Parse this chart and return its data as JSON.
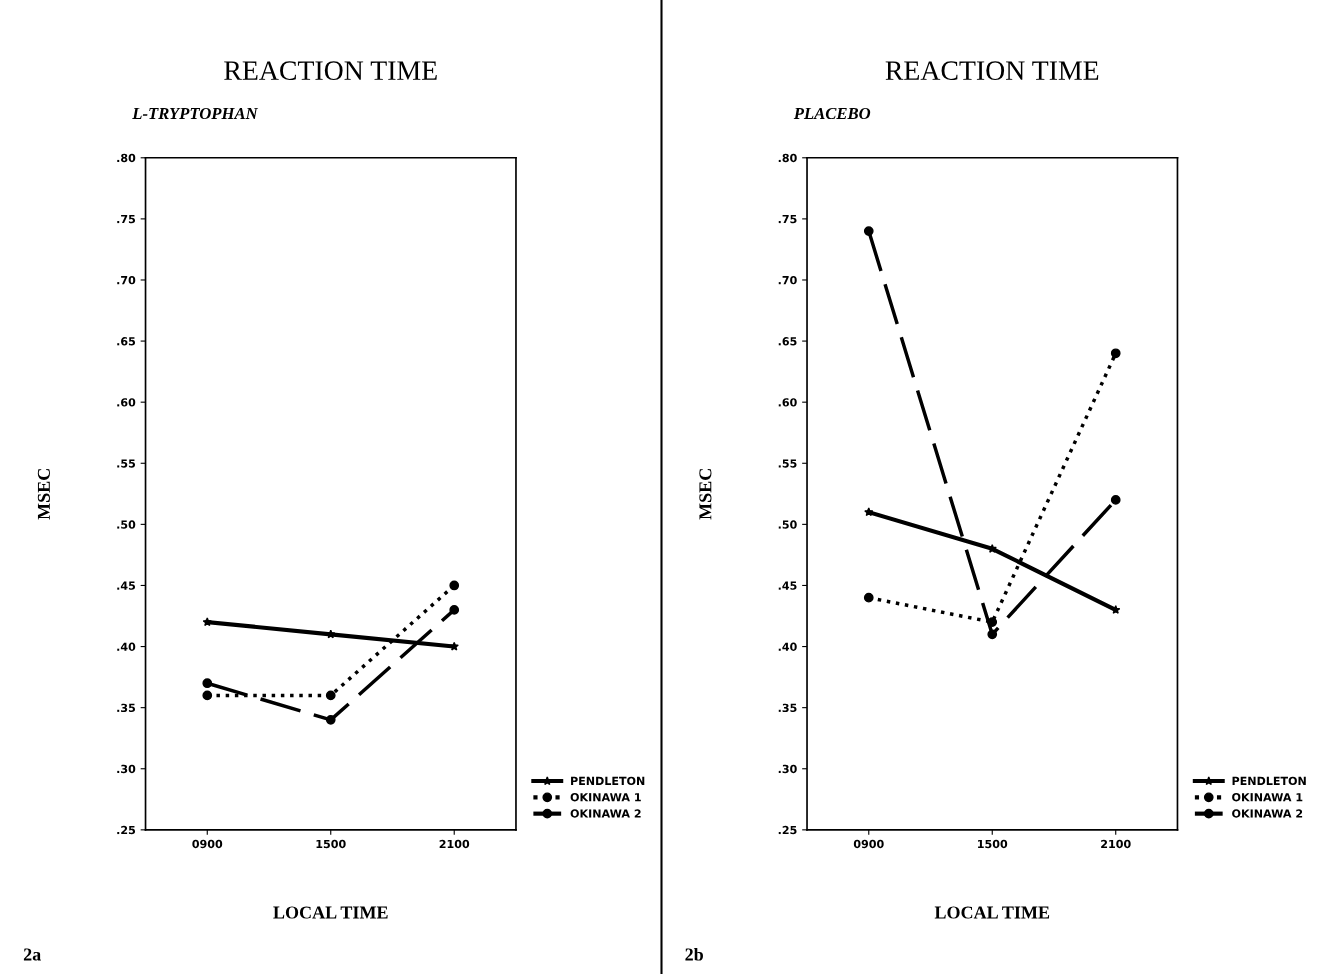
{
  "chart_data": [
    {
      "type": "line",
      "title": "REACTION TIME",
      "subtitle": "L-TRYPTOPHAN",
      "xlabel": "LOCAL TIME",
      "ylabel": "MSEC",
      "categories": [
        "0900",
        "1500",
        "2100"
      ],
      "series": [
        {
          "name": "PENDLETON",
          "color": "#000000",
          "line_style": "solid",
          "marker": "star",
          "values": [
            0.42,
            0.41,
            0.4
          ]
        },
        {
          "name": "OKINAWA 1",
          "color": "#000000",
          "line_style": "dotted",
          "marker": "circle",
          "values": [
            0.36,
            0.36,
            0.45
          ]
        },
        {
          "name": "OKINAWA 2",
          "color": "#000000",
          "line_style": "dashed",
          "marker": "circle",
          "values": [
            0.37,
            0.34,
            0.43
          ]
        }
      ],
      "ylim": [
        0.25,
        0.8
      ],
      "yticks": [
        {
          "value": 0.25,
          "label": ".25"
        },
        {
          "value": 0.3,
          "label": ".30"
        },
        {
          "value": 0.35,
          "label": ".35"
        },
        {
          "value": 0.4,
          "label": ".40"
        },
        {
          "value": 0.45,
          "label": ".45"
        },
        {
          "value": 0.5,
          "label": ".50"
        },
        {
          "value": 0.55,
          "label": ".55"
        },
        {
          "value": 0.6,
          "label": ".60"
        },
        {
          "value": 0.65,
          "label": ".65"
        },
        {
          "value": 0.7,
          "label": ".70"
        },
        {
          "value": 0.75,
          "label": ".75"
        },
        {
          "value": 0.8,
          "label": ".80"
        }
      ],
      "grid": false,
      "legend": "bottom right",
      "annotations": [
        "2a"
      ]
    },
    {
      "type": "line",
      "title": "REACTION TIME",
      "subtitle": "PLACEBO",
      "xlabel": "LOCAL TIME",
      "ylabel": "MSEC",
      "categories": [
        "0900",
        "1500",
        "2100"
      ],
      "series": [
        {
          "name": "PENDLETON",
          "color": "#000000",
          "line_style": "solid",
          "marker": "star",
          "values": [
            0.51,
            0.48,
            0.43
          ]
        },
        {
          "name": "OKINAWA 1",
          "color": "#000000",
          "line_style": "dotted",
          "marker": "circle",
          "values": [
            0.44,
            0.42,
            0.64
          ]
        },
        {
          "name": "OKINAWA 2",
          "color": "#000000",
          "line_style": "dashed",
          "marker": "circle",
          "values": [
            0.74,
            0.41,
            0.52
          ]
        }
      ],
      "ylim": [
        0.25,
        0.8
      ],
      "yticks": [
        {
          "value": 0.25,
          "label": ".25"
        },
        {
          "value": 0.3,
          "label": ".30"
        },
        {
          "value": 0.35,
          "label": ".35"
        },
        {
          "value": 0.4,
          "label": ".40"
        },
        {
          "value": 0.45,
          "label": ".45"
        },
        {
          "value": 0.5,
          "label": ".50"
        },
        {
          "value": 0.55,
          "label": ".55"
        },
        {
          "value": 0.6,
          "label": ".60"
        },
        {
          "value": 0.65,
          "label": ".65"
        },
        {
          "value": 0.7,
          "label": ".70"
        },
        {
          "value": 0.75,
          "label": ".75"
        },
        {
          "value": 0.8,
          "label": ".80"
        }
      ],
      "grid": false,
      "legend": "bottom right",
      "annotations": [
        "2b"
      ]
    }
  ]
}
